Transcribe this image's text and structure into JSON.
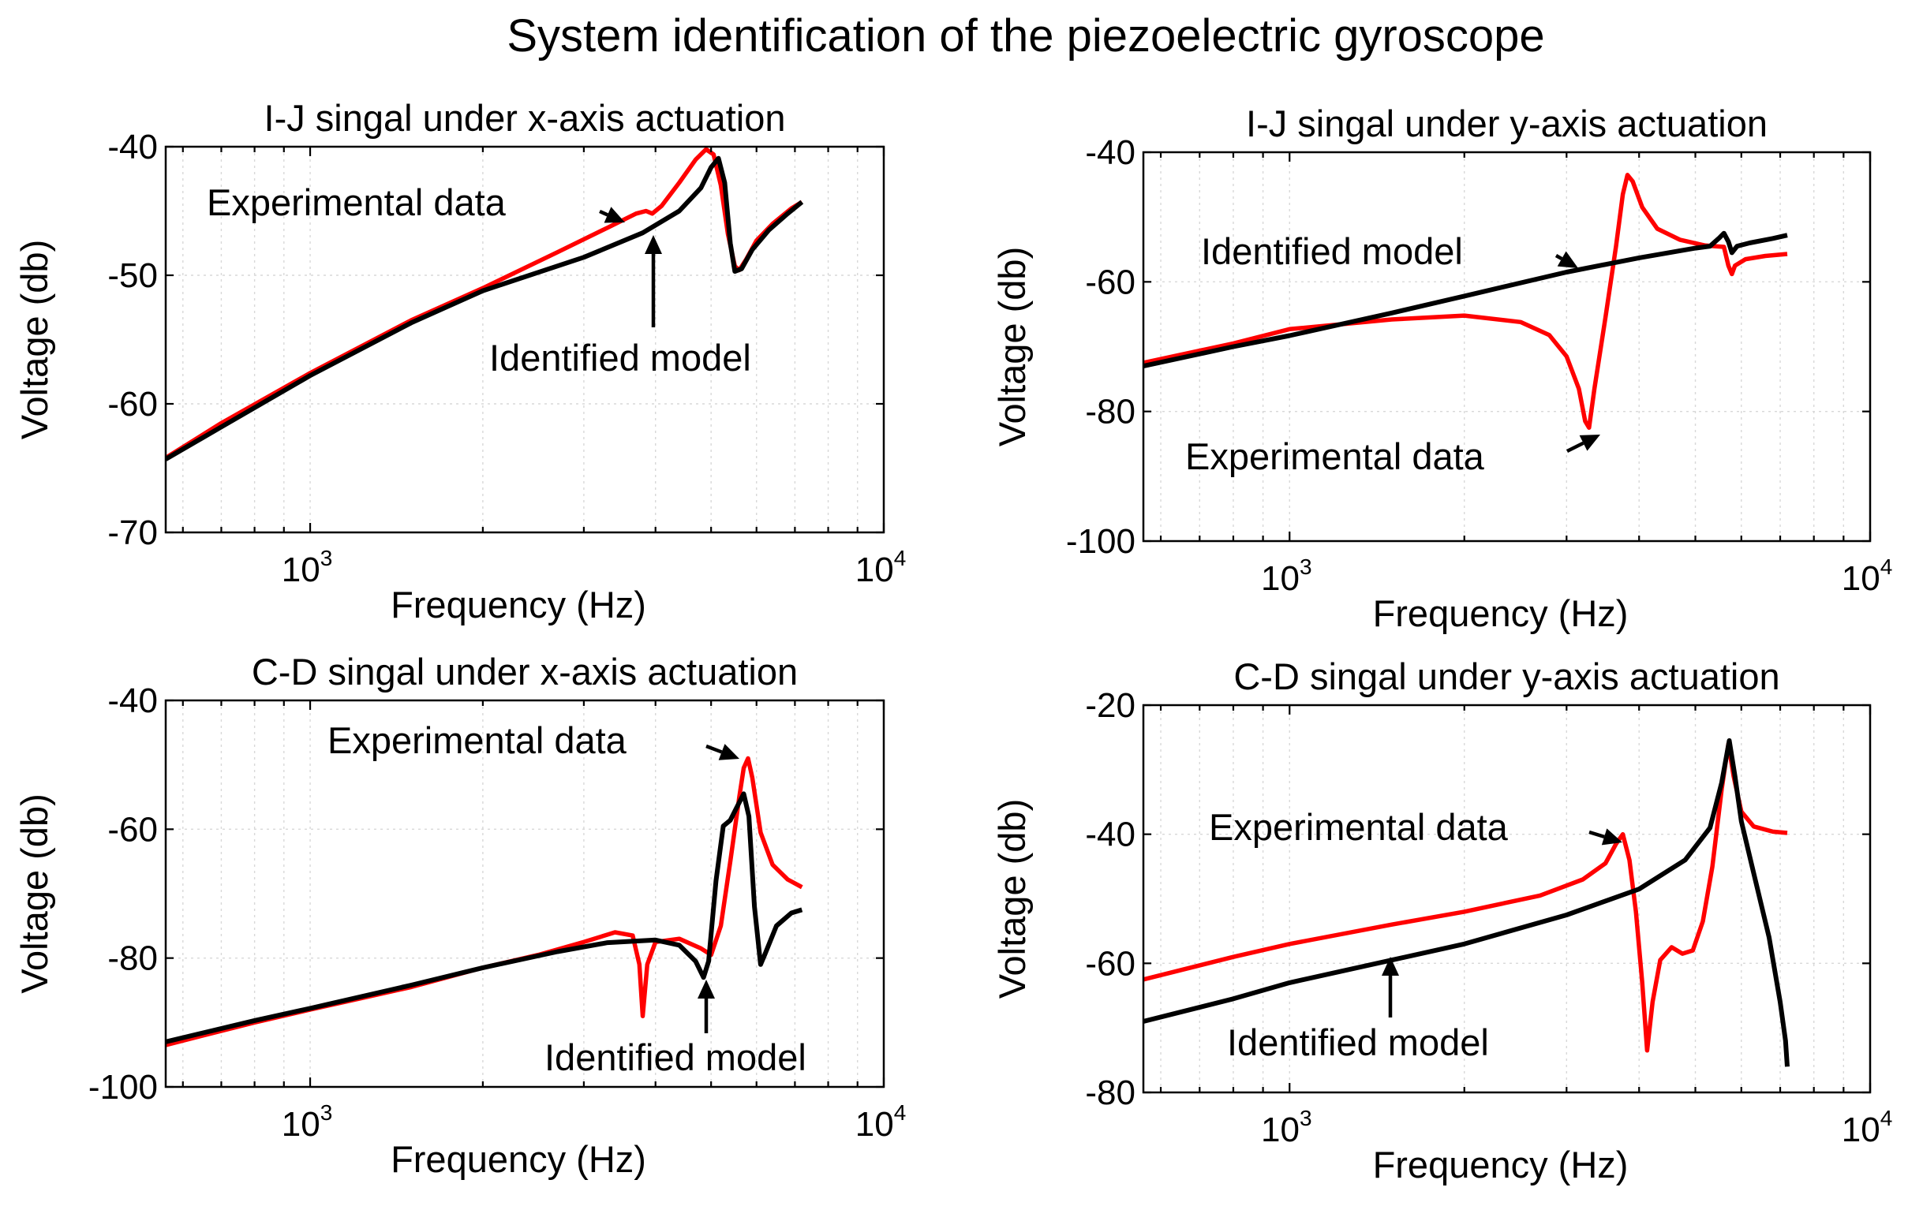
{
  "figure_title": "System identification of the piezoelectric gyroscope",
  "colors": {
    "experimental": "#ff0000",
    "model": "#000000"
  },
  "chart_data": [
    {
      "type": "line",
      "title": "I-J singal under x-axis actuation",
      "xlabel": "Frequency (Hz)",
      "ylabel": "Voltage (db)",
      "xscale": "log",
      "xlim": [
        560,
        10000
      ],
      "ylim": [
        -70,
        -40
      ],
      "yticks": [
        -70,
        -60,
        -50,
        -40
      ],
      "xticks": [
        {
          "value": 1000,
          "base": "10",
          "exp": "3"
        },
        {
          "value": 10000,
          "base": "10",
          "exp": "4"
        }
      ],
      "series": [
        {
          "name": "Experimental data",
          "color": "#ff0000",
          "points": [
            [
              560,
              -64.2
            ],
            [
              700,
              -61.5
            ],
            [
              1000,
              -57.6
            ],
            [
              1500,
              -53.5
            ],
            [
              2000,
              -51.0
            ],
            [
              2700,
              -48.2
            ],
            [
              3300,
              -46.3
            ],
            [
              3700,
              -45.2
            ],
            [
              3850,
              -45.0
            ],
            [
              3950,
              -45.2
            ],
            [
              4100,
              -44.6
            ],
            [
              4400,
              -42.8
            ],
            [
              4700,
              -41.0
            ],
            [
              4900,
              -40.2
            ],
            [
              5050,
              -40.6
            ],
            [
              5200,
              -43.0
            ],
            [
              5350,
              -46.8
            ],
            [
              5500,
              -49.3
            ],
            [
              5600,
              -49.6
            ],
            [
              5750,
              -48.8
            ],
            [
              6000,
              -47.3
            ],
            [
              6400,
              -46.0
            ],
            [
              6900,
              -44.8
            ],
            [
              7200,
              -44.3
            ]
          ]
        },
        {
          "name": "Identified model",
          "color": "#000000",
          "points": [
            [
              560,
              -64.3
            ],
            [
              700,
              -61.8
            ],
            [
              1000,
              -57.8
            ],
            [
              1500,
              -53.7
            ],
            [
              2000,
              -51.2
            ],
            [
              3000,
              -48.6
            ],
            [
              3800,
              -46.7
            ],
            [
              4400,
              -45.0
            ],
            [
              4800,
              -43.2
            ],
            [
              5000,
              -41.6
            ],
            [
              5150,
              -40.9
            ],
            [
              5280,
              -42.8
            ],
            [
              5400,
              -47.5
            ],
            [
              5500,
              -49.7
            ],
            [
              5650,
              -49.5
            ],
            [
              5900,
              -48.0
            ],
            [
              6300,
              -46.5
            ],
            [
              6800,
              -45.2
            ],
            [
              7200,
              -44.3
            ]
          ]
        }
      ],
      "annotations": [
        {
          "text": "Experimental data",
          "target": "Experimental data"
        },
        {
          "text": "Identified model",
          "target": "Identified model"
        }
      ]
    },
    {
      "type": "line",
      "title": "I-J singal under y-axis actuation",
      "xlabel": "Frequency (Hz)",
      "ylabel": "Voltage (db)",
      "xscale": "log",
      "xlim": [
        560,
        10000
      ],
      "ylim": [
        -100,
        -40
      ],
      "yticks": [
        -100,
        -80,
        -60,
        -40
      ],
      "xticks": [
        {
          "value": 1000,
          "base": "10",
          "exp": "3"
        },
        {
          "value": 10000,
          "base": "10",
          "exp": "4"
        }
      ],
      "series": [
        {
          "name": "Experimental data",
          "color": "#ff0000",
          "points": [
            [
              560,
              -72.5
            ],
            [
              800,
              -69.5
            ],
            [
              1000,
              -67.3
            ],
            [
              1500,
              -65.8
            ],
            [
              2000,
              -65.2
            ],
            [
              2500,
              -66.2
            ],
            [
              2800,
              -68.2
            ],
            [
              3000,
              -71.5
            ],
            [
              3150,
              -76.5
            ],
            [
              3230,
              -81.5
            ],
            [
              3280,
              -82.5
            ],
            [
              3350,
              -76.5
            ],
            [
              3500,
              -65.5
            ],
            [
              3650,
              -54.5
            ],
            [
              3750,
              -46.5
            ],
            [
              3820,
              -43.5
            ],
            [
              3900,
              -44.5
            ],
            [
              4050,
              -48.5
            ],
            [
              4300,
              -51.8
            ],
            [
              4700,
              -53.5
            ],
            [
              5200,
              -54.4
            ],
            [
              5600,
              -54.6
            ],
            [
              5700,
              -57.5
            ],
            [
              5780,
              -58.8
            ],
            [
              5850,
              -57.5
            ],
            [
              6100,
              -56.5
            ],
            [
              6600,
              -56.0
            ],
            [
              7200,
              -55.7
            ]
          ]
        },
        {
          "name": "Identified model",
          "color": "#000000",
          "points": [
            [
              560,
              -73.0
            ],
            [
              800,
              -70.0
            ],
            [
              1000,
              -68.3
            ],
            [
              1500,
              -64.8
            ],
            [
              2000,
              -62.2
            ],
            [
              3000,
              -58.5
            ],
            [
              4000,
              -56.3
            ],
            [
              5000,
              -54.8
            ],
            [
              5300,
              -54.5
            ],
            [
              5500,
              -53.2
            ],
            [
              5600,
              -52.5
            ],
            [
              5700,
              -53.8
            ],
            [
              5780,
              -55.5
            ],
            [
              5900,
              -54.5
            ],
            [
              6200,
              -54.0
            ],
            [
              6800,
              -53.3
            ],
            [
              7200,
              -52.8
            ]
          ]
        }
      ],
      "annotations": [
        {
          "text": "Identified model",
          "target": "Identified model"
        },
        {
          "text": "Experimental data",
          "target": "Experimental data"
        }
      ]
    },
    {
      "type": "line",
      "title": "C-D singal under x-axis actuation",
      "xlabel": "Frequency (Hz)",
      "ylabel": "Voltage (db)",
      "xscale": "log",
      "xlim": [
        560,
        10000
      ],
      "ylim": [
        -100,
        -40
      ],
      "yticks": [
        -100,
        -80,
        -60,
        -40
      ],
      "xticks": [
        {
          "value": 1000,
          "base": "10",
          "exp": "3"
        },
        {
          "value": 10000,
          "base": "10",
          "exp": "4"
        }
      ],
      "series": [
        {
          "name": "Experimental data",
          "color": "#ff0000",
          "points": [
            [
              560,
              -93.5
            ],
            [
              800,
              -90.0
            ],
            [
              1000,
              -88.0
            ],
            [
              1500,
              -84.5
            ],
            [
              2000,
              -81.5
            ],
            [
              2500,
              -79.5
            ],
            [
              3000,
              -77.5
            ],
            [
              3400,
              -76.0
            ],
            [
              3650,
              -76.5
            ],
            [
              3750,
              -81.0
            ],
            [
              3800,
              -89.0
            ],
            [
              3870,
              -81.0
            ],
            [
              4000,
              -77.5
            ],
            [
              4400,
              -77.0
            ],
            [
              4800,
              -78.5
            ],
            [
              5000,
              -79.5
            ],
            [
              5200,
              -75.0
            ],
            [
              5400,
              -65.0
            ],
            [
              5600,
              -55.0
            ],
            [
              5700,
              -50.5
            ],
            [
              5800,
              -49.0
            ],
            [
              5900,
              -52.0
            ],
            [
              6100,
              -60.5
            ],
            [
              6400,
              -65.5
            ],
            [
              6800,
              -67.8
            ],
            [
              7200,
              -69.0
            ]
          ]
        },
        {
          "name": "Identified model",
          "color": "#000000",
          "points": [
            [
              560,
              -93.0
            ],
            [
              800,
              -89.7
            ],
            [
              1000,
              -87.8
            ],
            [
              1500,
              -84.2
            ],
            [
              2000,
              -81.5
            ],
            [
              2700,
              -79.0
            ],
            [
              3300,
              -77.6
            ],
            [
              4000,
              -77.2
            ],
            [
              4400,
              -78.0
            ],
            [
              4700,
              -80.5
            ],
            [
              4850,
              -83.0
            ],
            [
              4950,
              -80.5
            ],
            [
              5100,
              -68.0
            ],
            [
              5250,
              -59.5
            ],
            [
              5400,
              -58.6
            ],
            [
              5550,
              -56.5
            ],
            [
              5700,
              -54.5
            ],
            [
              5820,
              -58.0
            ],
            [
              5950,
              -72.0
            ],
            [
              6100,
              -81.0
            ],
            [
              6200,
              -79.5
            ],
            [
              6500,
              -75.0
            ],
            [
              6900,
              -73.0
            ],
            [
              7200,
              -72.5
            ]
          ]
        }
      ],
      "annotations": [
        {
          "text": "Experimental data",
          "target": "Experimental data"
        },
        {
          "text": "Identified model",
          "target": "Identified model"
        }
      ]
    },
    {
      "type": "line",
      "title": "C-D singal under y-axis actuation",
      "xlabel": "Frequency (Hz)",
      "ylabel": "Voltage (db)",
      "xscale": "log",
      "xlim": [
        560,
        10000
      ],
      "ylim": [
        -80,
        -20
      ],
      "yticks": [
        -80,
        -60,
        -40,
        -20
      ],
      "xticks": [
        {
          "value": 1000,
          "base": "10",
          "exp": "3"
        },
        {
          "value": 10000,
          "base": "10",
          "exp": "4"
        }
      ],
      "series": [
        {
          "name": "Experimental data",
          "color": "#ff0000",
          "points": [
            [
              560,
              -62.5
            ],
            [
              800,
              -59.0
            ],
            [
              1000,
              -57.0
            ],
            [
              1500,
              -54.0
            ],
            [
              2000,
              -52.0
            ],
            [
              2700,
              -49.5
            ],
            [
              3200,
              -47.0
            ],
            [
              3500,
              -44.5
            ],
            [
              3650,
              -41.5
            ],
            [
              3750,
              -40.0
            ],
            [
              3850,
              -44.0
            ],
            [
              3950,
              -52.0
            ],
            [
              4050,
              -63.0
            ],
            [
              4130,
              -73.5
            ],
            [
              4220,
              -66.0
            ],
            [
              4350,
              -59.5
            ],
            [
              4550,
              -57.5
            ],
            [
              4750,
              -58.5
            ],
            [
              4950,
              -58.0
            ],
            [
              5150,
              -53.5
            ],
            [
              5350,
              -45.0
            ],
            [
              5550,
              -33.0
            ],
            [
              5700,
              -26.0
            ],
            [
              5820,
              -31.0
            ],
            [
              6000,
              -36.5
            ],
            [
              6300,
              -38.8
            ],
            [
              6800,
              -39.6
            ],
            [
              7200,
              -39.8
            ]
          ]
        },
        {
          "name": "Identified model",
          "color": "#000000",
          "points": [
            [
              560,
              -69.0
            ],
            [
              800,
              -65.5
            ],
            [
              1000,
              -63.0
            ],
            [
              1500,
              -59.5
            ],
            [
              2000,
              -57.0
            ],
            [
              3000,
              -52.5
            ],
            [
              4000,
              -48.5
            ],
            [
              4800,
              -44.0
            ],
            [
              5300,
              -39.0
            ],
            [
              5550,
              -32.0
            ],
            [
              5720,
              -25.5
            ],
            [
              5850,
              -31.0
            ],
            [
              6000,
              -38.0
            ],
            [
              6300,
              -46.0
            ],
            [
              6700,
              -56.0
            ],
            [
              7000,
              -66.0
            ],
            [
              7150,
              -72.0
            ],
            [
              7200,
              -76.0
            ]
          ]
        }
      ],
      "annotations": [
        {
          "text": "Experimental data",
          "target": "Experimental data"
        },
        {
          "text": "Identified model",
          "target": "Identified model"
        }
      ]
    }
  ]
}
